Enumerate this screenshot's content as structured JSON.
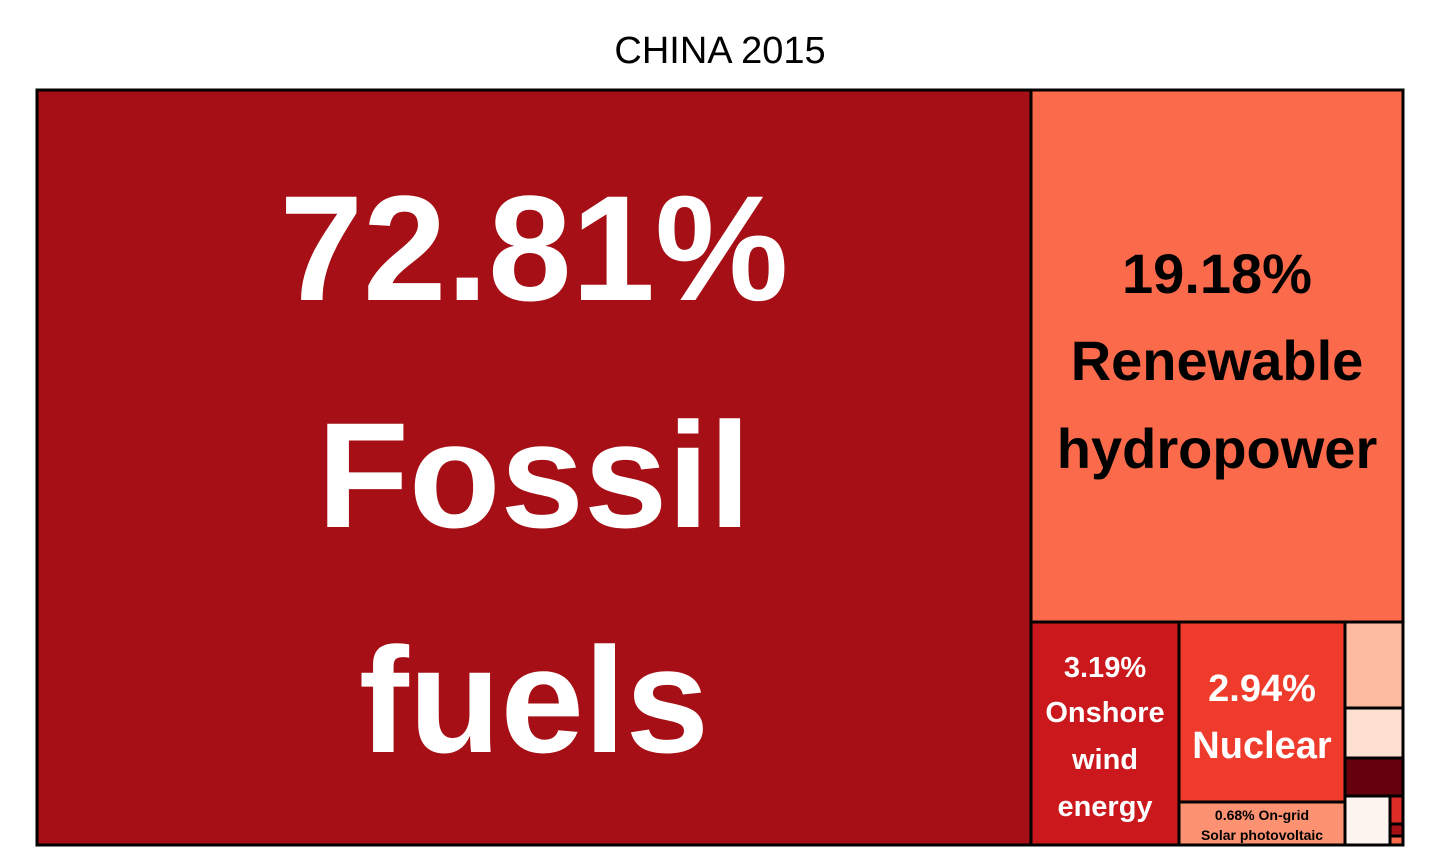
{
  "chart_data": {
    "type": "treemap",
    "title": "CHINA 2015",
    "unit": "%",
    "items": [
      {
        "label": "Fossil fuels",
        "value": 72.81,
        "value_text": "72.81%",
        "color": "#a50f15",
        "text_color": "#ffffff"
      },
      {
        "label": "Renewable hydropower",
        "value": 19.18,
        "value_text": "19.18%",
        "color": "#fb6a4a",
        "text_color": "#000000"
      },
      {
        "label": "Onshore wind energy",
        "value": 3.19,
        "value_text": "3.19%",
        "color": "#cb181d",
        "text_color": "#ffffff"
      },
      {
        "label": "Nuclear",
        "value": 2.94,
        "value_text": "2.94%",
        "color": "#ef3b2c",
        "text_color": "#ffffff"
      },
      {
        "label": "On-grid Solar photovoltaic",
        "value": 0.68,
        "value_text": "0.68%",
        "color": "#fc9272",
        "text_color": "#000000"
      },
      {
        "label": "",
        "value": 0.45,
        "color": "#fcbba1"
      },
      {
        "label": "",
        "value": 0.31,
        "color": "#fee0d2"
      },
      {
        "label": "",
        "value": 0.22,
        "color": "#67000d"
      },
      {
        "label": "",
        "value": 0.15,
        "color": "#fff5f0"
      },
      {
        "label": "",
        "value": 0.04,
        "color": "#de2d26"
      },
      {
        "label": "",
        "value": 0.02,
        "color": "#a50f15"
      },
      {
        "label": "",
        "value": 0.01,
        "color": "#fb6a4a"
      }
    ]
  }
}
